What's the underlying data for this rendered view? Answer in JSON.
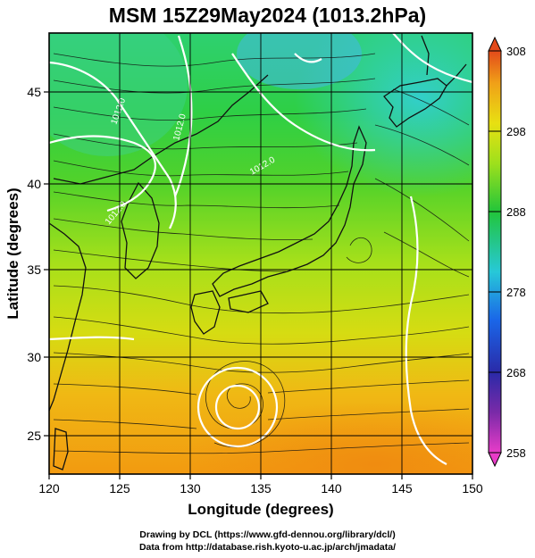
{
  "title": "MSM 15Z29May2024 (1013.2hPa)",
  "x_axis": {
    "label": "Longitude (degrees)",
    "range": [
      120,
      150
    ],
    "ticks": [
      "120",
      "125",
      "130",
      "135",
      "140",
      "145",
      "150"
    ]
  },
  "y_axis": {
    "label": "Latitude  (degrees)",
    "range": [
      22.5,
      47.5
    ],
    "ticks": [
      "25",
      "30",
      "35",
      "40",
      "45"
    ]
  },
  "colorbar": {
    "range": [
      258,
      308
    ],
    "ticks": [
      "308",
      "298",
      "288",
      "278",
      "268",
      "258"
    ],
    "colors": [
      "#e83cc8",
      "#3a2aa0",
      "#1a66e8",
      "#27c8d8",
      "#22c53a",
      "#9ee01c",
      "#e8e012",
      "#f0a018",
      "#e34a1a"
    ]
  },
  "contour_labels": [
    "1012.0",
    "1012.0",
    "1012.0",
    "1012.0"
  ],
  "credits": {
    "line1": "Drawing by DCL (https://www.gfd-dennou.org/library/dcl/)",
    "line2": "Data from http://database.rish.kyoto-u.ac.jp/arch/jmadata/"
  }
}
